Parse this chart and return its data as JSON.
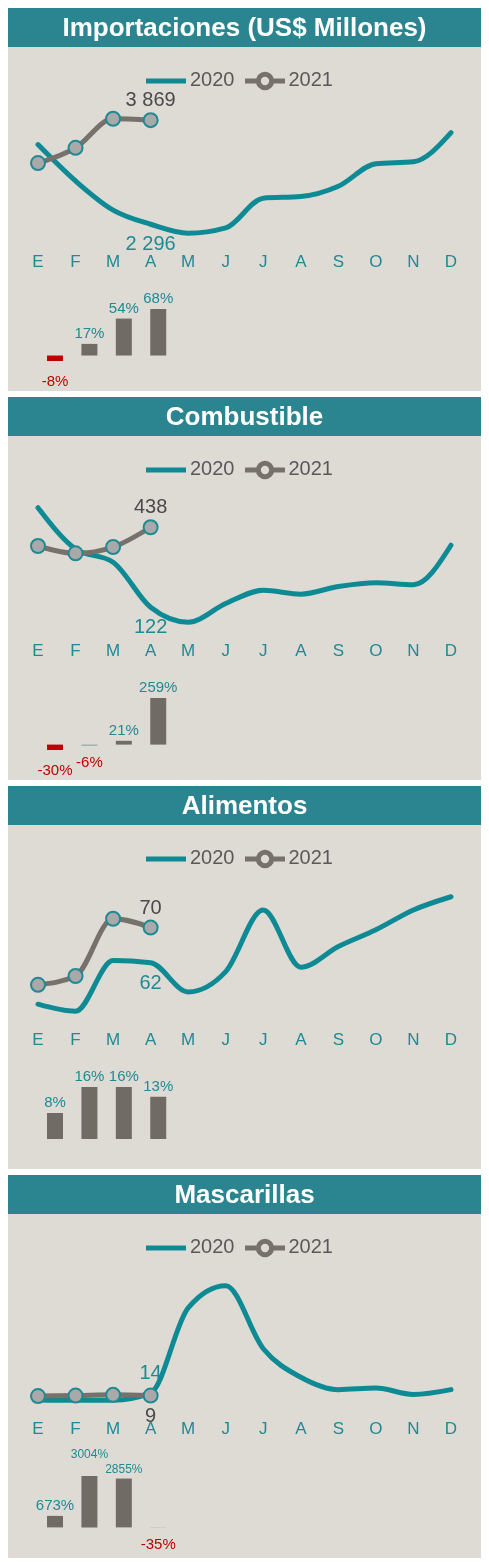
{
  "chart_data": [
    {
      "type": "line",
      "title": "Importaciones (US$ Millones)",
      "categories": [
        "E",
        "F",
        "M",
        "A",
        "M",
        "J",
        "J",
        "A",
        "S",
        "O",
        "N",
        "D"
      ],
      "tick_labels": "x",
      "legend": "top",
      "series": [
        {
          "name": "2020",
          "color": "#0e8a94",
          "marker": "none",
          "values": [
            3500,
            2950,
            2510,
            2296,
            2160,
            2240,
            2690,
            2715,
            2870,
            3210,
            3240,
            3680
          ],
          "value_labels": [
            null,
            null,
            null,
            "2 296",
            null,
            null,
            null,
            null,
            null,
            null,
            null,
            null
          ]
        },
        {
          "name": "2021",
          "color": "#77716b",
          "marker": "circle",
          "values": [
            3220,
            3450,
            3890,
            3869,
            null,
            null,
            null,
            null,
            null,
            null,
            null,
            null
          ],
          "value_labels": [
            null,
            null,
            null,
            "3 869",
            null,
            null,
            null,
            null,
            null,
            null,
            null,
            null
          ]
        }
      ]
    },
    {
      "type": "bar",
      "categories": [
        null,
        null,
        null,
        null,
        null,
        null,
        null,
        null,
        null,
        null,
        null,
        null
      ],
      "tick_labels": false,
      "values": [
        -8,
        17,
        54,
        68,
        null,
        null,
        null,
        null,
        null,
        null,
        null,
        null
      ],
      "value_labels": [
        "-8%",
        "17%",
        "54%",
        "68%",
        null,
        null,
        null,
        null,
        null,
        null,
        null,
        null
      ],
      "colors": [
        "#c00000",
        "#706b65",
        "#706b65",
        "#706b65",
        null,
        null,
        null,
        null,
        null,
        null,
        null,
        null
      ]
    },
    {
      "type": "line",
      "title": "Combustible",
      "categories": [
        "E",
        "F",
        "M",
        "A",
        "M",
        "J",
        "J",
        "A",
        "S",
        "O",
        "N",
        "D"
      ],
      "tick_labels": "x",
      "legend": "top",
      "series": [
        {
          "name": "2020",
          "color": "#0e8a94",
          "marker": "none",
          "values": [
            515,
            352,
            300,
            122,
            63,
            137,
            189,
            174,
            204,
            219,
            211,
            367
          ],
          "value_labels": [
            null,
            null,
            null,
            "122",
            null,
            null,
            null,
            null,
            null,
            null,
            null,
            null
          ]
        },
        {
          "name": "2021",
          "color": "#77716b",
          "marker": "circle",
          "values": [
            364,
            335,
            360,
            438,
            null,
            null,
            null,
            null,
            null,
            null,
            null,
            null
          ],
          "value_labels": [
            null,
            null,
            null,
            "438",
            null,
            null,
            null,
            null,
            null,
            null,
            null,
            null
          ]
        }
      ]
    },
    {
      "type": "bar",
      "categories": [
        null,
        null,
        null,
        null,
        null,
        null,
        null,
        null,
        null,
        null,
        null,
        null
      ],
      "tick_labels": false,
      "values": [
        -30,
        -6,
        21,
        259,
        null,
        null,
        null,
        null,
        null,
        null,
        null,
        null
      ],
      "value_labels": [
        "-30%",
        "-6%",
        "21%",
        "259%",
        null,
        null,
        null,
        null,
        null,
        null,
        null,
        null
      ],
      "colors": [
        "#c00000",
        "#8fa3a8",
        "#706b65",
        "#706b65",
        null,
        null,
        null,
        null,
        null,
        null,
        null,
        null
      ]
    },
    {
      "type": "line",
      "title": "Alimentos",
      "categories": [
        "E",
        "F",
        "M",
        "A",
        "M",
        "J",
        "J",
        "A",
        "S",
        "O",
        "N",
        "D"
      ],
      "tick_labels": "x",
      "legend": "top",
      "series": [
        {
          "name": "2020",
          "color": "#0e8a94",
          "marker": "none",
          "values": [
            52.6,
            51,
            62.5,
            62,
            55.4,
            60,
            74,
            61,
            65.7,
            69.5,
            74,
            77
          ],
          "value_labels": [
            null,
            null,
            null,
            "62",
            null,
            null,
            null,
            null,
            null,
            null,
            null,
            null
          ]
        },
        {
          "name": "2021",
          "color": "#77716b",
          "marker": "circle",
          "values": [
            57,
            59,
            72,
            70,
            null,
            null,
            null,
            null,
            null,
            null,
            null,
            null
          ],
          "value_labels": [
            null,
            null,
            null,
            "70",
            null,
            null,
            null,
            null,
            null,
            null,
            null,
            null
          ]
        }
      ]
    },
    {
      "type": "bar",
      "categories": [
        null,
        null,
        null,
        null,
        null,
        null,
        null,
        null,
        null,
        null,
        null,
        null
      ],
      "tick_labels": false,
      "values": [
        8,
        16,
        16,
        13,
        null,
        null,
        null,
        null,
        null,
        null,
        null,
        null
      ],
      "value_labels": [
        "8%",
        "16%",
        "16%",
        "13%",
        null,
        null,
        null,
        null,
        null,
        null,
        null,
        null
      ],
      "colors": [
        "#706b65",
        "#706b65",
        "#706b65",
        "#706b65",
        null,
        null,
        null,
        null,
        null,
        null,
        null,
        null
      ]
    },
    {
      "type": "line",
      "title": "Mascarillas",
      "categories": [
        "E",
        "F",
        "M",
        "A",
        "M",
        "J",
        "J",
        "A",
        "S",
        "O",
        "N",
        "D"
      ],
      "tick_labels": "x",
      "legend": "top",
      "series": [
        {
          "name": "2020",
          "color": "#0e8a94",
          "marker": "none",
          "values": [
            1,
            0.3,
            0.35,
            14,
            172,
            213,
            96,
            43,
            20,
            23,
            11,
            20
          ],
          "value_labels": [
            null,
            null,
            null,
            "14",
            null,
            null,
            null,
            null,
            null,
            null,
            null,
            null
          ]
        },
        {
          "name": "2021",
          "color": "#77716b",
          "marker": "circle",
          "values": [
            8.1,
            9,
            10.3,
            9,
            null,
            null,
            null,
            null,
            null,
            null,
            null,
            null
          ],
          "value_labels": [
            null,
            null,
            null,
            "9",
            null,
            null,
            null,
            null,
            null,
            null,
            null,
            null
          ]
        }
      ]
    },
    {
      "type": "bar",
      "categories": [
        null,
        null,
        null,
        null,
        null,
        null,
        null,
        null,
        null,
        null,
        null,
        null
      ],
      "tick_labels": false,
      "values": [
        673,
        3004,
        2855,
        -35,
        null,
        null,
        null,
        null,
        null,
        null,
        null,
        null
      ],
      "value_labels": [
        "673%",
        "3004%",
        "2855%",
        "-35%",
        null,
        null,
        null,
        null,
        null,
        null,
        null,
        null
      ],
      "colors": [
        "#706b65",
        "#706b65",
        "#706b65",
        "#c8c4be",
        null,
        null,
        null,
        null,
        null,
        null,
        null,
        null
      ]
    }
  ]
}
